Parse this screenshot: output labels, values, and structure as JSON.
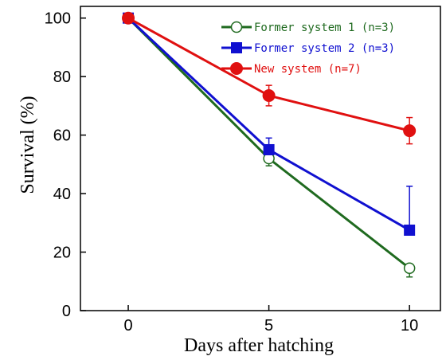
{
  "chart_data": {
    "type": "line",
    "title": "",
    "xlabel": "Days after hatching",
    "ylabel": "Survival (%)",
    "xlim": [
      -1.7,
      11.1
    ],
    "ylim": [
      0,
      104
    ],
    "x_ticks": [
      0,
      5,
      10
    ],
    "y_ticks": [
      0,
      20,
      40,
      60,
      80,
      100
    ],
    "grid": false,
    "legend_position": "top-right",
    "series": [
      {
        "name": "Former system 1 (n=3)",
        "color": "#1f6a1f",
        "marker": "open-circle",
        "x": [
          0,
          5,
          10
        ],
        "values": [
          100,
          52,
          14.5
        ],
        "error": [
          0,
          2.5,
          3
        ]
      },
      {
        "name": "Former system 2 (n=3)",
        "color": "#1010d0",
        "marker": "filled-square",
        "x": [
          0,
          5,
          10
        ],
        "values": [
          100,
          55,
          27.5
        ],
        "error": [
          0,
          4,
          15
        ]
      },
      {
        "name": "New system (n=7)",
        "color": "#e01010",
        "marker": "filled-circle",
        "x": [
          0,
          5,
          10
        ],
        "values": [
          100,
          73.5,
          61.5
        ],
        "error": [
          0,
          3.5,
          4.5
        ]
      }
    ]
  }
}
